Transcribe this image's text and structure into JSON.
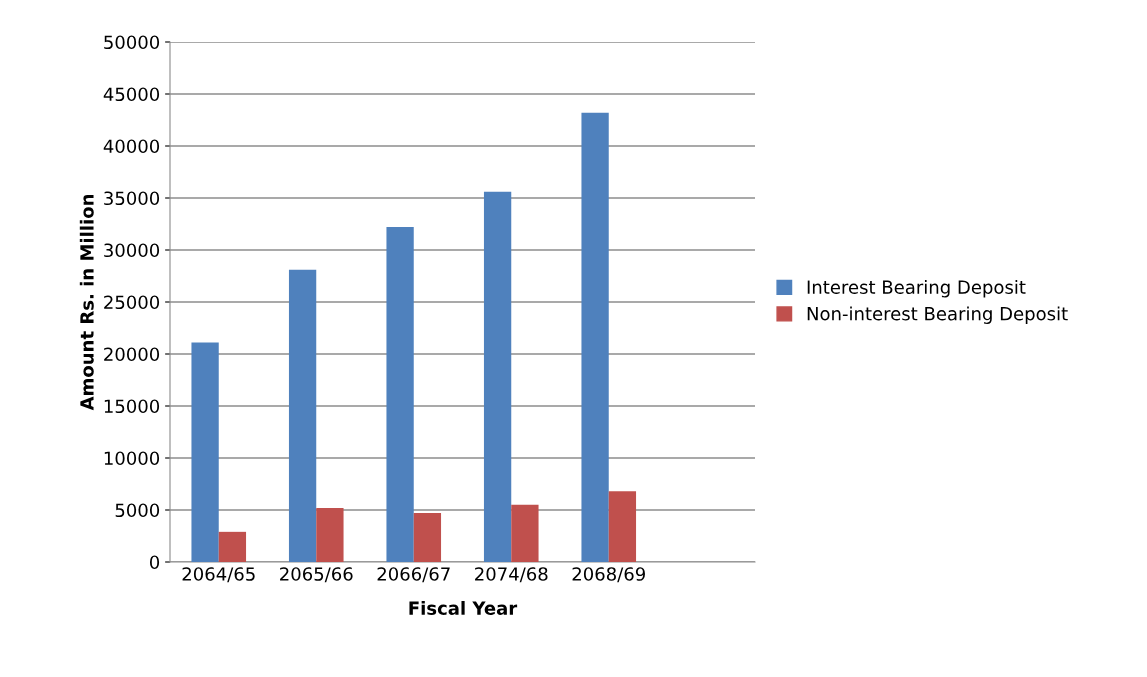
{
  "chart_data": {
    "type": "bar",
    "xlabel": "Fiscal Year",
    "ylabel": "Amount Rs. in Million",
    "categories": [
      "2064/65",
      "2065/66",
      "2066/67",
      "2074/68",
      "2068/69",
      null
    ],
    "series": [
      {
        "name": "Interest Bearing Deposit",
        "color": "#4f81bd",
        "values": [
          21100,
          28100,
          32200,
          35600,
          43200,
          null
        ]
      },
      {
        "name": "Non-interest Bearing Deposit",
        "color": "#c0504d",
        "values": [
          2900,
          5200,
          4700,
          5500,
          6800,
          null
        ]
      }
    ],
    "ylim": [
      0,
      50000
    ],
    "yticks": [
      0,
      5000,
      10000,
      15000,
      20000,
      25000,
      30000,
      35000,
      40000,
      45000,
      50000
    ],
    "grid": "y",
    "legend": "right"
  }
}
